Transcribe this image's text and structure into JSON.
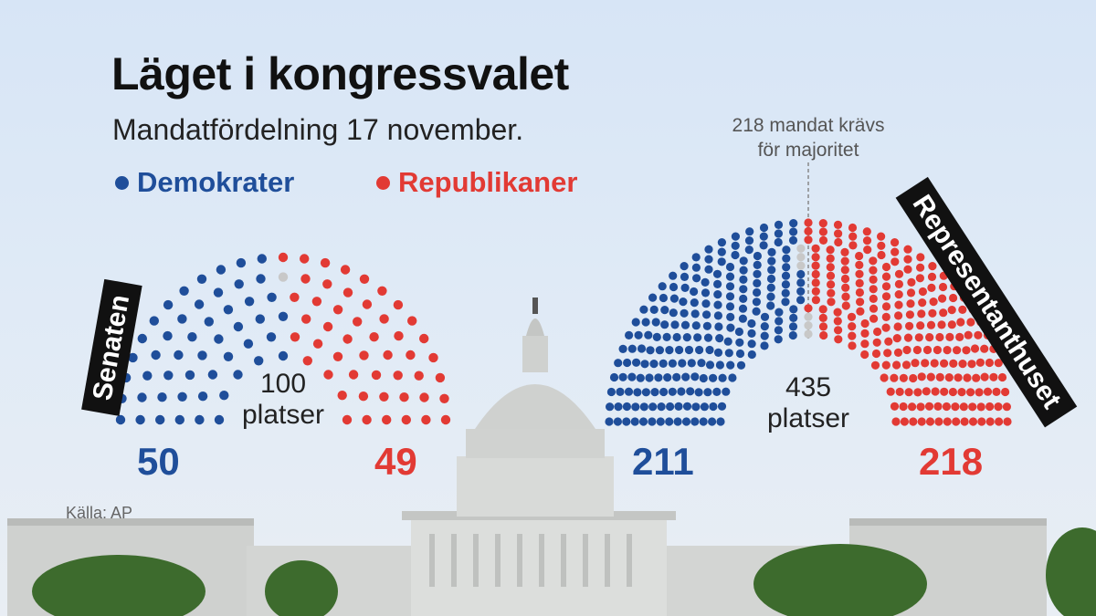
{
  "title": "Läget i kongressvalet",
  "subtitle": "Mandatfördelning 17 november.",
  "legend": {
    "dem": "Demokrater",
    "rep": "Republikaner"
  },
  "majority_note": {
    "line1": "218 mandat krävs",
    "line2": "för majoritet"
  },
  "source": "Källa: AP",
  "colors": {
    "dem": "#1f4e9a",
    "rep": "#e23a34",
    "undecided": "#c8c8c8"
  },
  "chart_data": [
    {
      "type": "parliament",
      "chamber": "Senaten",
      "total_label": {
        "value": "100",
        "unit": "platser"
      },
      "total": 100,
      "series": [
        {
          "name": "Demokrater",
          "values": [
            50
          ]
        },
        {
          "name": "Republikaner",
          "values": [
            49
          ]
        }
      ],
      "undecided": 1
    },
    {
      "type": "parliament",
      "chamber": "Representanthuset",
      "total_label": {
        "value": "435",
        "unit": "platser"
      },
      "total": 435,
      "series": [
        {
          "name": "Demokrater",
          "values": [
            211
          ]
        },
        {
          "name": "Republikaner",
          "values": [
            218
          ]
        }
      ],
      "undecided": 6,
      "majority": 218
    }
  ],
  "counts": {
    "senate_dem": "50",
    "senate_rep": "49",
    "house_dem": "211",
    "house_rep": "218"
  }
}
